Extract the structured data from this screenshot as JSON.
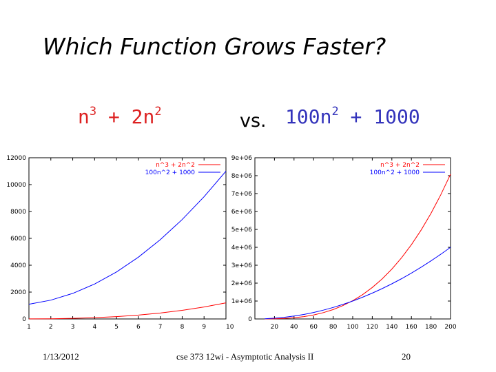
{
  "slide": {
    "title": "Which Function Grows Faster?",
    "formula_left": {
      "base1": "n",
      "exp1": "3",
      "mid": " + 2n",
      "exp2": "2",
      "color": "#dd2222"
    },
    "vs": "vs.",
    "formula_right": {
      "base1": "100n",
      "exp1": "2",
      "rest": " + 1000",
      "color": "#3333bb"
    },
    "footer": {
      "date": "1/13/2012",
      "course": "cse 373 12wi - Asymptotic Analysis II",
      "page": "20"
    }
  },
  "chart_data": [
    {
      "type": "line",
      "legend_position": "top-right",
      "grid": false,
      "xlim": [
        1,
        10
      ],
      "ylim": [
        0,
        12000
      ],
      "xticks": [
        "1",
        "2",
        "3",
        "4",
        "5",
        "6",
        "7",
        "8",
        "9",
        "10"
      ],
      "yticks": [
        "0",
        "2000",
        "4000",
        "6000",
        "8000",
        "10000",
        "12000"
      ],
      "series": [
        {
          "name": "n^3 + 2n^2",
          "color": "#ff0000",
          "x": [
            1,
            2,
            3,
            4,
            5,
            6,
            7,
            8,
            9,
            10
          ],
          "y": [
            3,
            16,
            45,
            96,
            175,
            288,
            441,
            640,
            891,
            1200
          ]
        },
        {
          "name": "100n^2 + 1000",
          "color": "#0000ff",
          "x": [
            1,
            2,
            3,
            4,
            5,
            6,
            7,
            8,
            9,
            10
          ],
          "y": [
            1100,
            1400,
            1900,
            2600,
            3500,
            4600,
            5900,
            7400,
            9100,
            11000
          ]
        }
      ]
    },
    {
      "type": "line",
      "legend_position": "top-right",
      "grid": false,
      "xlim": [
        0,
        200
      ],
      "ylim": [
        0,
        9000000
      ],
      "xticks": [
        "20",
        "40",
        "60",
        "80",
        "100",
        "120",
        "140",
        "160",
        "180",
        "200"
      ],
      "yticks": [
        "0",
        "1e+06",
        "2e+06",
        "3e+06",
        "4e+06",
        "5e+06",
        "6e+06",
        "7e+06",
        "8e+06",
        "9e+06"
      ],
      "series": [
        {
          "name": "n^3 + 2n^2",
          "color": "#ff0000",
          "x": [
            10,
            20,
            30,
            40,
            50,
            60,
            70,
            80,
            90,
            100,
            110,
            120,
            130,
            140,
            150,
            160,
            170,
            180,
            190,
            200
          ],
          "y": [
            1200,
            8800,
            28800,
            67200,
            130000,
            223200,
            352800,
            524800,
            745200,
            1020000,
            1355200,
            1756800,
            2230800,
            2783200,
            3420000,
            4147200,
            4970800,
            5896800,
            6931200,
            8080000
          ]
        },
        {
          "name": "100n^2 + 1000",
          "color": "#0000ff",
          "x": [
            10,
            20,
            30,
            40,
            50,
            60,
            70,
            80,
            90,
            100,
            110,
            120,
            130,
            140,
            150,
            160,
            170,
            180,
            190,
            200
          ],
          "y": [
            11000,
            41000,
            91000,
            161000,
            251000,
            361000,
            491000,
            641000,
            811000,
            1001000,
            1211000,
            1441000,
            1691000,
            1961000,
            2251000,
            2561000,
            2891000,
            3241000,
            3611000,
            4001000
          ]
        }
      ]
    }
  ]
}
